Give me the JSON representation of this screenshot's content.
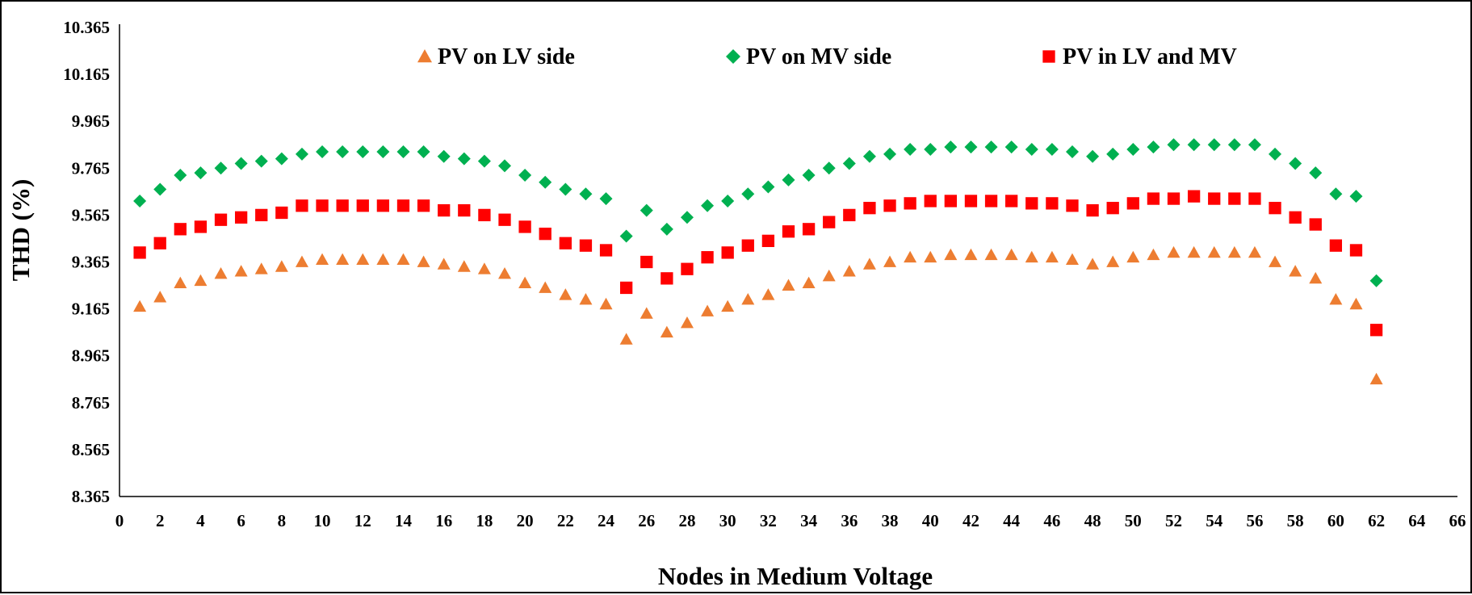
{
  "chart_data": {
    "type": "scatter",
    "title": "",
    "xlabel": "Nodes in Medium Voltage",
    "ylabel": "THD (%)",
    "xlim": [
      0,
      66
    ],
    "ylim": [
      8.365,
      10.365
    ],
    "x_ticks": [
      "0",
      "2",
      "4",
      "6",
      "8",
      "10",
      "12",
      "14",
      "16",
      "18",
      "20",
      "22",
      "24",
      "26",
      "28",
      "30",
      "32",
      "34",
      "36",
      "38",
      "40",
      "42",
      "44",
      "46",
      "48",
      "50",
      "52",
      "54",
      "56",
      "58",
      "60",
      "62",
      "64",
      "66"
    ],
    "y_ticks": [
      "10.365",
      "10.165",
      "9.965",
      "9.765",
      "9.565",
      "9.365",
      "9.165",
      "8.965",
      "8.765",
      "8.565",
      "8.365"
    ],
    "grid": false,
    "legend_position": "top",
    "x": [
      1,
      2,
      3,
      4,
      5,
      6,
      7,
      8,
      9,
      10,
      11,
      12,
      13,
      14,
      15,
      16,
      17,
      18,
      19,
      20,
      21,
      22,
      23,
      24,
      25,
      26,
      27,
      28,
      29,
      30,
      31,
      32,
      33,
      34,
      35,
      36,
      37,
      38,
      39,
      40,
      41,
      42,
      43,
      44,
      45,
      46,
      47,
      48,
      49,
      50,
      51,
      52,
      53,
      54,
      55,
      56,
      57,
      58,
      59,
      60,
      61,
      62
    ],
    "series": [
      {
        "name": "PV on LV side",
        "color": "#ED7D31",
        "marker": "triangle",
        "values": [
          9.175,
          9.215,
          9.275,
          9.285,
          9.315,
          9.325,
          9.335,
          9.345,
          9.365,
          9.375,
          9.375,
          9.375,
          9.375,
          9.375,
          9.365,
          9.355,
          9.345,
          9.335,
          9.315,
          9.275,
          9.255,
          9.225,
          9.205,
          9.185,
          9.035,
          9.145,
          9.065,
          9.105,
          9.155,
          9.175,
          9.205,
          9.225,
          9.265,
          9.275,
          9.305,
          9.325,
          9.355,
          9.365,
          9.385,
          9.385,
          9.395,
          9.395,
          9.395,
          9.395,
          9.385,
          9.385,
          9.375,
          9.355,
          9.365,
          9.385,
          9.395,
          9.405,
          9.405,
          9.405,
          9.405,
          9.405,
          9.365,
          9.325,
          9.295,
          9.205,
          9.185,
          8.865
        ]
      },
      {
        "name": "PV on MV side",
        "color": "#00B050",
        "marker": "diamond",
        "values": [
          9.625,
          9.675,
          9.735,
          9.745,
          9.765,
          9.785,
          9.795,
          9.805,
          9.825,
          9.835,
          9.835,
          9.835,
          9.835,
          9.835,
          9.835,
          9.815,
          9.805,
          9.795,
          9.775,
          9.735,
          9.705,
          9.675,
          9.655,
          9.635,
          9.475,
          9.585,
          9.505,
          9.555,
          9.605,
          9.625,
          9.655,
          9.685,
          9.715,
          9.735,
          9.765,
          9.785,
          9.815,
          9.825,
          9.845,
          9.845,
          9.855,
          9.855,
          9.855,
          9.855,
          9.845,
          9.845,
          9.835,
          9.815,
          9.825,
          9.845,
          9.855,
          9.865,
          9.865,
          9.865,
          9.865,
          9.865,
          9.825,
          9.785,
          9.745,
          9.655,
          9.645,
          9.285
        ]
      },
      {
        "name": "PV in LV and MV",
        "color": "#FF0000",
        "marker": "square",
        "values": [
          9.405,
          9.445,
          9.505,
          9.515,
          9.545,
          9.555,
          9.565,
          9.575,
          9.605,
          9.605,
          9.605,
          9.605,
          9.605,
          9.605,
          9.605,
          9.585,
          9.585,
          9.565,
          9.545,
          9.515,
          9.485,
          9.445,
          9.435,
          9.415,
          9.255,
          9.365,
          9.295,
          9.335,
          9.385,
          9.405,
          9.435,
          9.455,
          9.495,
          9.505,
          9.535,
          9.565,
          9.595,
          9.605,
          9.615,
          9.625,
          9.625,
          9.625,
          9.625,
          9.625,
          9.615,
          9.615,
          9.605,
          9.585,
          9.595,
          9.615,
          9.635,
          9.635,
          9.645,
          9.635,
          9.635,
          9.635,
          9.595,
          9.555,
          9.525,
          9.435,
          9.415,
          9.075
        ]
      }
    ]
  }
}
